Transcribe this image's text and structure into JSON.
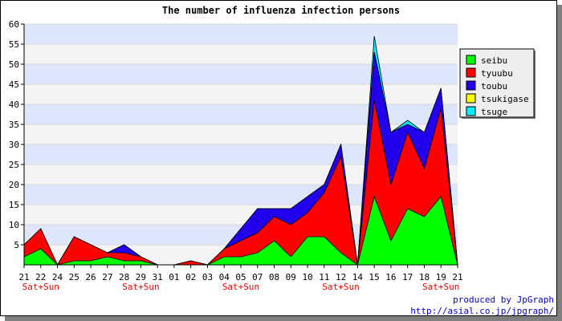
{
  "chart_data": {
    "type": "area",
    "stacked": true,
    "title": "The number of influenza infection persons",
    "xlabel": "",
    "ylabel": "",
    "ylim": [
      0,
      60
    ],
    "yticks": [
      5,
      10,
      15,
      20,
      25,
      30,
      35,
      40,
      45,
      50,
      55,
      60
    ],
    "grid": true,
    "legend_position": "right",
    "categories": [
      "21",
      "22",
      "24",
      "25",
      "26",
      "27",
      "28",
      "29",
      "31",
      "01",
      "02",
      "03",
      "04",
      "05",
      "07",
      "08",
      "09",
      "10",
      "11",
      "12",
      "14",
      "15",
      "16",
      "17",
      "18",
      "19",
      "21"
    ],
    "weekend_labels": [
      {
        "index": 1,
        "text": "Sat+Sun"
      },
      {
        "index": 7,
        "text": "Sat+Sun"
      },
      {
        "index": 13,
        "text": "Sat+Sun"
      },
      {
        "index": 19,
        "text": "Sat+Sun"
      },
      {
        "index": 25,
        "text": "Sat+Sun"
      }
    ],
    "series": [
      {
        "name": "seibu",
        "color": "#00ff00",
        "values": [
          2,
          4,
          0,
          1,
          1,
          2,
          1,
          1,
          0,
          0,
          0,
          0,
          2,
          2,
          3,
          6,
          2,
          7,
          7,
          3,
          0,
          17,
          6,
          14,
          12,
          17,
          0
        ]
      },
      {
        "name": "tyuubu",
        "color": "#ff0000",
        "values": [
          3,
          5,
          0,
          6,
          4,
          1,
          2,
          1,
          0,
          0,
          1,
          0,
          2,
          4,
          5,
          6,
          8,
          6,
          11,
          24,
          0,
          24,
          14,
          19,
          12,
          22,
          0
        ]
      },
      {
        "name": "toubu",
        "color": "#2200ee",
        "values": [
          0,
          0,
          0,
          0,
          0,
          0,
          2,
          0,
          0,
          0,
          0,
          0,
          0,
          3,
          6,
          2,
          4,
          4,
          2,
          3,
          0,
          12,
          13,
          2,
          9,
          5,
          0
        ]
      },
      {
        "name": "tsukigase",
        "color": "#ffff00",
        "values": [
          0,
          0,
          0,
          0,
          0,
          0,
          0,
          0,
          0,
          0,
          0,
          0,
          0,
          0,
          0,
          0,
          0,
          0,
          0,
          0,
          0,
          0,
          0,
          0,
          0,
          0,
          0
        ]
      },
      {
        "name": "tsuge",
        "color": "#00eeff",
        "values": [
          0,
          0,
          0,
          0,
          0,
          0,
          0,
          0,
          0,
          0,
          0,
          0,
          0,
          0,
          0,
          0,
          0,
          0,
          0,
          0,
          0,
          4,
          0,
          1,
          0,
          0,
          0
        ]
      }
    ]
  },
  "footer": {
    "credit_line1": "produced by JpGraph",
    "credit_line2": "http://asial.co.jp/jpgraph/"
  }
}
